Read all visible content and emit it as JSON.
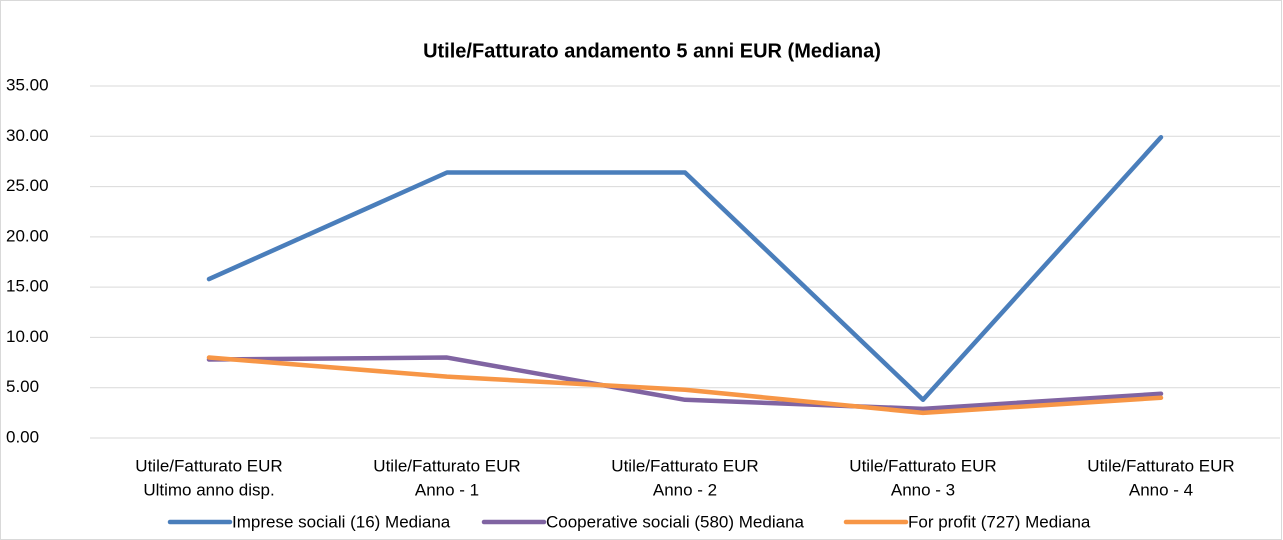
{
  "chart_data": {
    "type": "line",
    "title": "Utile/Fatturato andamento 5 anni EUR (Mediana)",
    "categories": [
      [
        "Utile/Fatturato EUR",
        "Ultimo anno disp."
      ],
      [
        "Utile/Fatturato EUR",
        "Anno - 1"
      ],
      [
        "Utile/Fatturato EUR",
        "Anno - 2"
      ],
      [
        "Utile/Fatturato EUR",
        "Anno - 3"
      ],
      [
        "Utile/Fatturato EUR",
        "Anno - 4"
      ]
    ],
    "series": [
      {
        "name": "Imprese sociali (16) Mediana",
        "color": "#4a7ebb",
        "values": [
          15.8,
          26.4,
          26.4,
          3.8,
          29.9
        ]
      },
      {
        "name": "Cooperative sociali (580) Mediana",
        "color": "#8064a2",
        "values": [
          7.8,
          8.0,
          3.8,
          2.9,
          4.4
        ]
      },
      {
        "name": "For profit (727) Mediana",
        "color": "#f79646",
        "values": [
          8.0,
          6.1,
          4.8,
          2.5,
          4.0
        ]
      }
    ],
    "ylim": [
      0,
      35
    ],
    "yticks": [
      {
        "value": 0,
        "label": "0.00"
      },
      {
        "value": 5,
        "label": "5.00"
      },
      {
        "value": 10,
        "label": "10.00"
      },
      {
        "value": 15,
        "label": "15.00"
      },
      {
        "value": 20,
        "label": "20.00"
      },
      {
        "value": 25,
        "label": "25.00"
      },
      {
        "value": 30,
        "label": "30.00"
      },
      {
        "value": 35,
        "label": "35.00"
      }
    ],
    "grid": true,
    "legend": "bottom"
  }
}
